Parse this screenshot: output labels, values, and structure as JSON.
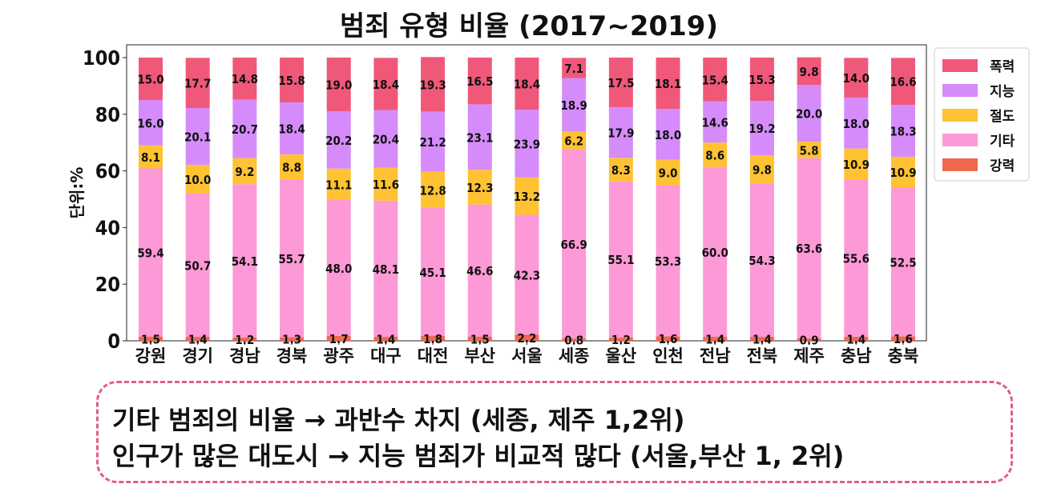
{
  "chart_data": {
    "type": "bar",
    "stacked": true,
    "title": "범죄 유형 비율 (2017~2019)",
    "ylabel": "단위:%",
    "ylim": [
      0,
      100
    ],
    "yticks": [
      "0",
      "20",
      "40",
      "60",
      "80",
      "100"
    ],
    "categories": [
      "강원",
      "경기",
      "경남",
      "경북",
      "광주",
      "대구",
      "대전",
      "부산",
      "서울",
      "세종",
      "울산",
      "인천",
      "전남",
      "전북",
      "제주",
      "충남",
      "충북"
    ],
    "series": [
      {
        "name": "강력",
        "color": "#f0694f",
        "values": [
          1.5,
          1.4,
          1.2,
          1.3,
          1.7,
          1.4,
          1.8,
          1.5,
          2.2,
          0.8,
          1.2,
          1.6,
          1.4,
          1.4,
          0.9,
          1.4,
          1.6
        ]
      },
      {
        "name": "기타",
        "color": "#fc99d6",
        "values": [
          59.4,
          50.7,
          54.1,
          55.7,
          48.0,
          48.1,
          45.1,
          46.6,
          42.3,
          66.9,
          55.1,
          53.3,
          60.0,
          54.3,
          63.6,
          55.6,
          52.5
        ]
      },
      {
        "name": "절도",
        "color": "#fec232",
        "values": [
          8.1,
          10.0,
          9.2,
          8.8,
          11.1,
          11.6,
          12.8,
          12.3,
          13.2,
          6.2,
          8.3,
          9.0,
          8.6,
          9.8,
          5.8,
          10.9,
          10.9
        ]
      },
      {
        "name": "지능",
        "color": "#d58cfa",
        "values": [
          16.0,
          20.1,
          20.7,
          18.4,
          20.2,
          20.4,
          21.2,
          23.1,
          23.9,
          18.9,
          17.9,
          18.0,
          14.6,
          19.2,
          20.0,
          18.0,
          18.3
        ]
      },
      {
        "name": "폭력",
        "color": "#f0587a",
        "values": [
          15.0,
          17.7,
          14.8,
          15.8,
          19.0,
          18.4,
          19.3,
          16.5,
          18.4,
          7.1,
          17.5,
          18.1,
          15.4,
          15.3,
          9.8,
          14.0,
          16.6
        ]
      }
    ],
    "legend_order": [
      "폭력",
      "지능",
      "절도",
      "기타",
      "강력"
    ],
    "legend_position": "upper-right-outside",
    "grid": false
  },
  "note": {
    "lines": [
      "기타 범죄의 비율 → 과반수 차지 (세종, 제주  1,2위)",
      "인구가 많은 대도시 → 지능 범죄가 비교적 많다 (서울,부산 1, 2위)"
    ],
    "border_color": "#e0607e"
  }
}
